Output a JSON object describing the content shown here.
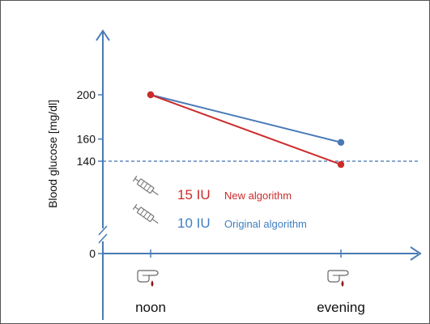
{
  "chart_data": {
    "type": "line",
    "ylabel": "Blood glucose [mg/dl]",
    "categories": [
      "noon",
      "evening"
    ],
    "y_ticks": [
      0,
      140,
      160,
      200
    ],
    "y_axis_break": true,
    "reference_line": 140,
    "series": [
      {
        "name": "Original algorithm",
        "dose": "10 IU",
        "color": "#4a7ab5",
        "values": [
          200,
          157
        ]
      },
      {
        "name": "New algorithm",
        "dose": "15 IU",
        "color": "#cc2b2b",
        "values": [
          200,
          137
        ]
      }
    ],
    "legend": [
      {
        "dose": "15 IU",
        "label": "New algorithm",
        "color": "#cc2b2b",
        "icon": "syringe-icon"
      },
      {
        "dose": "10 IU",
        "label": "Original algorithm",
        "color": "#3f7fc0",
        "icon": "syringe-icon"
      }
    ],
    "category_icons": [
      "finger-blood-drop-icon",
      "finger-blood-drop-icon"
    ],
    "grid": false
  }
}
